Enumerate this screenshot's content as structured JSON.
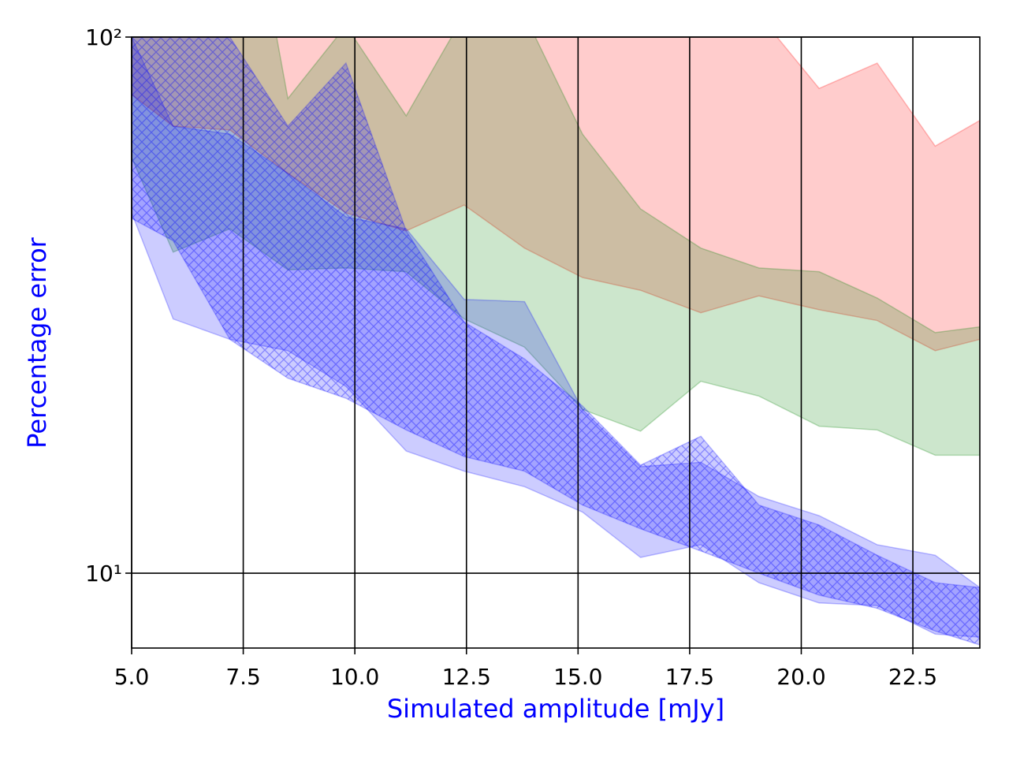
{
  "chart_data": {
    "type": "band",
    "x_label": "Simulated amplitude [mJy]",
    "y_label": "Percentage error",
    "label_color": "#0000ff",
    "x": [
      5,
      5.93,
      7.2,
      8.5,
      9.8,
      11.15,
      12.45,
      13.8,
      15.1,
      16.4,
      17.75,
      19.05,
      20.4,
      21.7,
      23.0,
      24.0
    ],
    "series": [
      {
        "color": "#ff0000",
        "hatch": false,
        "upper": [
          150,
          150,
          150,
          150,
          150,
          150,
          150,
          150,
          150,
          150,
          150,
          110,
          80.2,
          89.4,
          62.6,
          69.9
        ],
        "lower": [
          78.1,
          68.2,
          67.1,
          55.7,
          47.0,
          43.5,
          48.6,
          40.4,
          35.6,
          33.7,
          30.6,
          32.9,
          31.0,
          29.6,
          26.0,
          27.3
        ]
      },
      {
        "color": "#008000",
        "hatch": false,
        "upper": [
          130,
          130,
          300,
          76.8,
          105,
          71.3,
          110,
          110,
          65.9,
          47.8,
          40.4,
          37.1,
          36.5,
          32.6,
          28.1,
          28.8
        ],
        "lower": [
          59.6,
          39.7,
          43.9,
          36.8,
          37.1,
          36.5,
          29.8,
          26.4,
          20.2,
          18.4,
          22.8,
          21.4,
          18.8,
          18.5,
          16.6,
          16.6
        ]
      },
      {
        "color": "#0000ff",
        "hatch": false,
        "upper": [
          100,
          68.2,
          65.9,
          55.7,
          46.2,
          43.9,
          32.4,
          32.1,
          20.2,
          15.8,
          16.1,
          13.9,
          12.8,
          11.3,
          10.8,
          9.4
        ],
        "lower": [
          47.0,
          29.8,
          27.3,
          26.0,
          22.3,
          16.9,
          15.5,
          14.5,
          13.0,
          10.7,
          11.3,
          9.6,
          8.8,
          8.7,
          7.7,
          7.6
        ]
      },
      {
        "color": "#0000ff",
        "hatch": true,
        "upper": [
          100,
          100,
          100,
          68.2,
          89.4,
          43.5,
          29.4,
          25.1,
          20.5,
          15.9,
          18.0,
          13.4,
          12.3,
          10.8,
          9.6,
          9.4
        ],
        "lower": [
          45.9,
          41.7,
          27.3,
          23.1,
          21.2,
          18.5,
          16.5,
          15.5,
          13.4,
          12.1,
          11.0,
          10.0,
          9.1,
          8.6,
          7.8,
          7.35
        ]
      }
    ],
    "xlim": [
      5,
      24
    ],
    "xticks": [
      {
        "value": 5,
        "label": "5.0"
      },
      7.5,
      {
        "value": 10,
        "label": "10.0"
      },
      12.5,
      {
        "value": 15,
        "label": "15.0"
      },
      17.5,
      {
        "value": 20,
        "label": "20.0"
      },
      22.5
    ],
    "ylim": [
      7.25,
      100
    ],
    "yticks": [
      {
        "value": 10,
        "label": "10¹"
      },
      {
        "value": 100,
        "label": "10²"
      }
    ],
    "yscale": "log",
    "grid": true
  }
}
